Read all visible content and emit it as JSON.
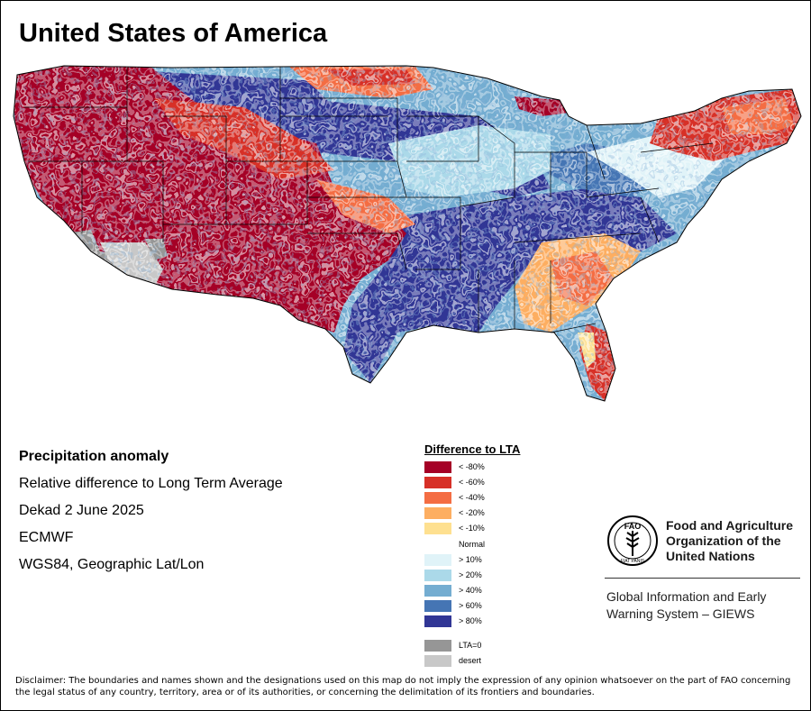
{
  "title": "United States of America",
  "info": {
    "heading": "Precipitation anomaly",
    "line1": "Relative difference to Long Term Average",
    "line2": "Dekad 2 June 2025",
    "line3": "ECMWF",
    "line4": "WGS84, Geographic Lat/Lon"
  },
  "legend": {
    "title": "Difference to LTA",
    "items": [
      {
        "label": "< -80%",
        "color": "#a50026"
      },
      {
        "label": "< -60%",
        "color": "#d73027"
      },
      {
        "label": "< -40%",
        "color": "#f46d43"
      },
      {
        "label": "< -20%",
        "color": "#fdae61"
      },
      {
        "label": "< -10%",
        "color": "#fee090"
      },
      {
        "label": "Normal",
        "color": "#ffffff"
      },
      {
        "label": "> 10%",
        "color": "#e0f3f8"
      },
      {
        "label": "> 20%",
        "color": "#abd9e9"
      },
      {
        "label": "> 40%",
        "color": "#74add1"
      },
      {
        "label": "> 60%",
        "color": "#4575b4"
      },
      {
        "label": "> 80%",
        "color": "#313695"
      },
      {
        "label": "LTA=0",
        "color": "#969696"
      },
      {
        "label": "desert",
        "color": "#c8c8c8"
      }
    ]
  },
  "org": {
    "logo_icon": "fao-logo-icon",
    "logo_text_top": "FAO",
    "logo_text_bottom": "FIAT PANIS",
    "name": "Food and Agriculture Organization of the United Nations",
    "system": "Global Information and Early Warning System – GIEWS"
  },
  "disclaimer": "Disclaimer: The boundaries and names shown and the designations used on this map do not imply the expression of any opinion whatsoever on the part of FAO concerning the legal status of any country, territory, area or of its authorities, or concerning the delimitation of its frontiers and boundaries."
}
